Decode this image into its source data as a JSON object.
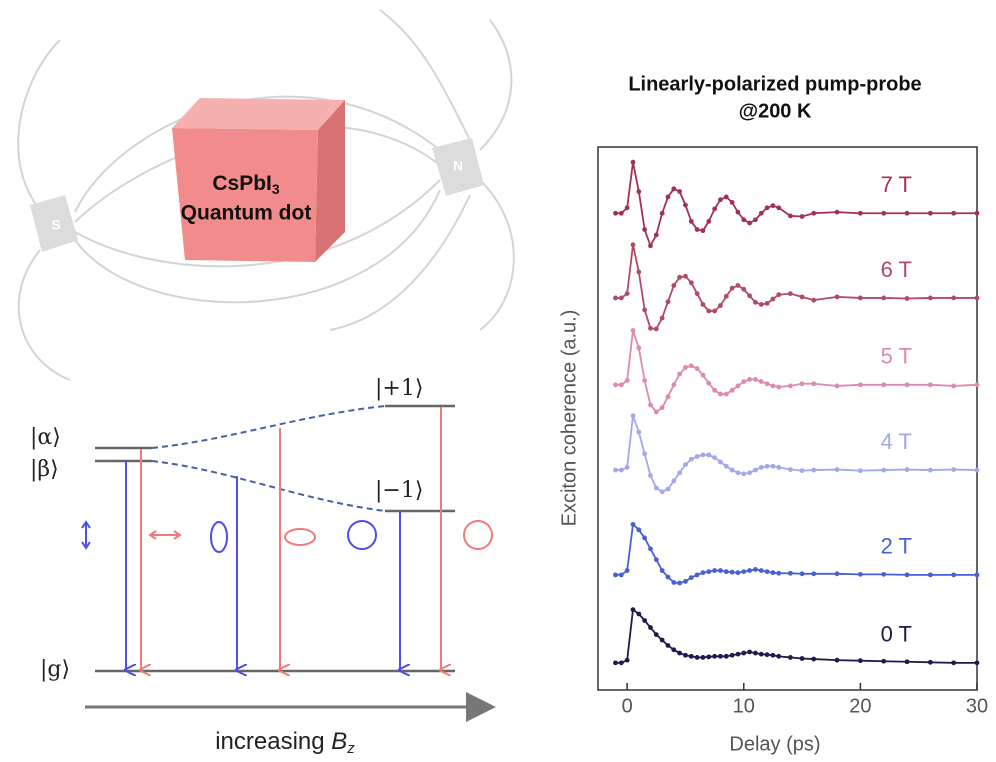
{
  "diagram": {
    "cube_line1": "CsPbI",
    "cube_sub": "3",
    "cube_line2": "Quantum dot",
    "magnet_left": "S",
    "magnet_right": "N",
    "state_alpha": "|α⟩",
    "state_beta": "|β⟩",
    "state_plus": "|+1⟩",
    "state_minus": "|−1⟩",
    "state_g": "|g⟩",
    "axis_text": "increasing",
    "axis_symbol": "B",
    "axis_sub": "z"
  },
  "chart_data": {
    "type": "line",
    "title": "Linearly-polarized pump-probe",
    "subtitle": "@200 K",
    "xlabel": "Delay (ps)",
    "ylabel": "Exciton coherence (a.u.)",
    "xlim": [
      -2.5,
      30
    ],
    "xticks": [
      0,
      10,
      20,
      30
    ],
    "ylim": [
      0,
      10
    ],
    "x": [
      -1,
      -0.5,
      0,
      0.5,
      1,
      1.5,
      2,
      2.5,
      3,
      3.5,
      4,
      4.5,
      5,
      5.5,
      6,
      6.5,
      7,
      7.5,
      8,
      8.5,
      9,
      9.5,
      10,
      10.5,
      11,
      11.5,
      12,
      12.5,
      13,
      14,
      15,
      16,
      18,
      20,
      22,
      24,
      26,
      28,
      30
    ],
    "series": [
      {
        "name": "7 T",
        "color": "#a3305c",
        "values": [
          8.78,
          8.78,
          8.88,
          9.72,
          9.18,
          8.48,
          8.18,
          8.38,
          8.78,
          9.08,
          9.23,
          9.18,
          8.93,
          8.63,
          8.48,
          8.46,
          8.63,
          8.86,
          9.03,
          9.08,
          8.98,
          8.8,
          8.66,
          8.6,
          8.66,
          8.78,
          8.88,
          8.92,
          8.88,
          8.73,
          8.72,
          8.78,
          8.8,
          8.78,
          8.78,
          8.78,
          8.78,
          8.78,
          8.78
        ]
      },
      {
        "name": "6 T",
        "color": "#b24a64",
        "values": [
          7.22,
          7.22,
          7.3,
          8.2,
          7.7,
          7.0,
          6.66,
          6.65,
          6.85,
          7.15,
          7.45,
          7.6,
          7.62,
          7.5,
          7.3,
          7.1,
          6.98,
          6.98,
          7.08,
          7.25,
          7.4,
          7.45,
          7.38,
          7.26,
          7.14,
          7.1,
          7.12,
          7.2,
          7.28,
          7.3,
          7.24,
          7.18,
          7.24,
          7.22,
          7.22,
          7.21,
          7.22,
          7.22,
          7.22
        ]
      },
      {
        "name": "5 T",
        "color": "#dc8ab2",
        "values": [
          5.62,
          5.62,
          5.7,
          6.62,
          6.3,
          5.7,
          5.25,
          5.12,
          5.2,
          5.4,
          5.62,
          5.82,
          5.94,
          5.97,
          5.92,
          5.8,
          5.65,
          5.52,
          5.45,
          5.45,
          5.52,
          5.6,
          5.68,
          5.72,
          5.72,
          5.68,
          5.64,
          5.6,
          5.58,
          5.6,
          5.64,
          5.64,
          5.6,
          5.62,
          5.62,
          5.62,
          5.62,
          5.6,
          5.62
        ]
      },
      {
        "name": "4 T",
        "color": "#a2a8ea",
        "values": [
          4.05,
          4.05,
          4.1,
          5.05,
          4.75,
          4.35,
          3.95,
          3.72,
          3.65,
          3.7,
          3.85,
          4.0,
          4.15,
          4.25,
          4.3,
          4.33,
          4.33,
          4.28,
          4.2,
          4.12,
          4.05,
          4.0,
          3.98,
          4.0,
          4.05,
          4.1,
          4.12,
          4.12,
          4.1,
          4.06,
          4.04,
          4.05,
          4.06,
          4.04,
          4.05,
          4.06,
          4.05,
          4.06,
          4.05
        ]
      },
      {
        "name": "2 T",
        "color": "#4a5fd0",
        "values": [
          2.12,
          2.12,
          2.2,
          3.05,
          2.95,
          2.8,
          2.6,
          2.4,
          2.2,
          2.08,
          1.98,
          1.97,
          2.0,
          2.07,
          2.12,
          2.16,
          2.18,
          2.2,
          2.2,
          2.18,
          2.17,
          2.16,
          2.18,
          2.2,
          2.22,
          2.2,
          2.18,
          2.16,
          2.15,
          2.15,
          2.14,
          2.14,
          2.14,
          2.13,
          2.13,
          2.12,
          2.12,
          2.12,
          2.12
        ]
      },
      {
        "name": "0 T",
        "color": "#1f1a4c",
        "values": [
          0.5,
          0.5,
          0.55,
          1.48,
          1.4,
          1.28,
          1.15,
          1.02,
          0.92,
          0.82,
          0.74,
          0.68,
          0.64,
          0.62,
          0.6,
          0.6,
          0.61,
          0.62,
          0.62,
          0.62,
          0.64,
          0.66,
          0.68,
          0.7,
          0.68,
          0.66,
          0.65,
          0.64,
          0.62,
          0.6,
          0.58,
          0.57,
          0.55,
          0.54,
          0.53,
          0.52,
          0.51,
          0.5,
          0.5
        ]
      }
    ]
  }
}
